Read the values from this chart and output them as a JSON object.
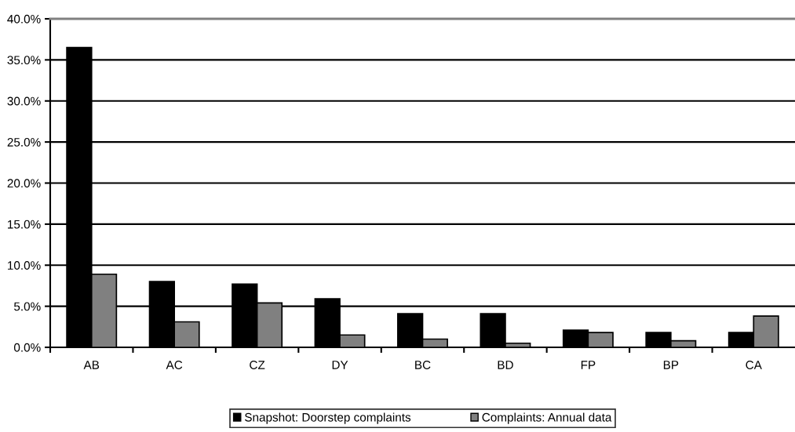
{
  "chart_data": {
    "type": "bar",
    "categories": [
      "AB",
      "AC",
      "CZ",
      "DY",
      "BC",
      "BD",
      "FP",
      "BP",
      "CA"
    ],
    "series": [
      {
        "name": "Snapshot: Doorstep complaints",
        "color": "#000000",
        "values": [
          36.5,
          8.0,
          7.7,
          5.9,
          4.1,
          4.1,
          2.1,
          1.8,
          1.8
        ]
      },
      {
        "name": "Complaints: Annual data",
        "color": "#808080",
        "values": [
          8.9,
          3.1,
          5.4,
          1.5,
          1.0,
          0.5,
          1.8,
          0.8,
          3.8
        ]
      }
    ],
    "ylim": [
      0,
      40
    ],
    "yticks": [
      {
        "value": 0,
        "label": "0.0%"
      },
      {
        "value": 5,
        "label": "5.0%"
      },
      {
        "value": 10,
        "label": "10.0%"
      },
      {
        "value": 15,
        "label": "15.0%"
      },
      {
        "value": 20,
        "label": "20.0%"
      },
      {
        "value": 25,
        "label": "25.0%"
      },
      {
        "value": 30,
        "label": "30.0%"
      },
      {
        "value": 35,
        "label": "35.0%"
      },
      {
        "value": 40,
        "label": "40.0%"
      }
    ],
    "grid": "y",
    "legend": "bottom"
  }
}
